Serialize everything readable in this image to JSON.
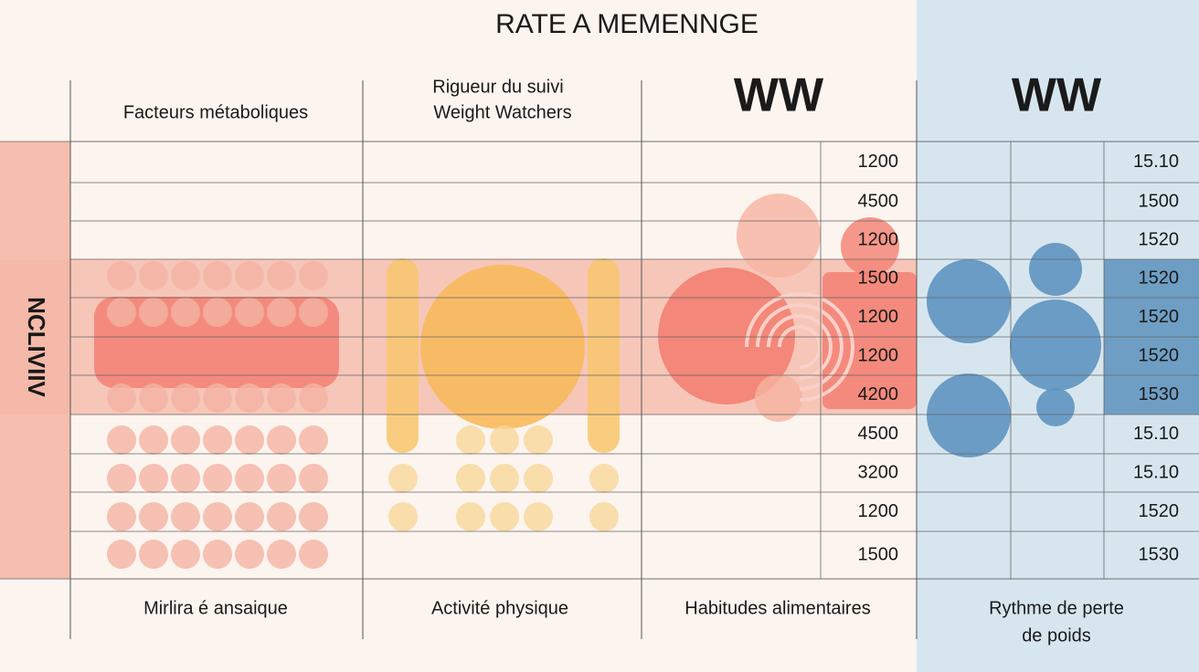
{
  "title": "RATE A MEMENNGE",
  "header": [
    "Facteurs métaboliques",
    [
      "Rigueur du suivi",
      "Weight Watchers"
    ],
    "WW",
    "WW"
  ],
  "side_label": "NCLIVIIV",
  "table": {
    "col3": [
      "1200",
      "4500",
      "1200",
      "1500",
      "1200",
      "1200",
      "4200",
      "4500",
      "3200",
      "1200",
      "1500"
    ],
    "col4": [
      "15.10",
      "1500",
      "1520",
      "1520",
      "1520",
      "1520",
      "1530",
      "15.10",
      "15.10",
      "1520",
      "1530"
    ]
  },
  "footer": [
    "Mirlira é ansaique",
    "Activité physique",
    "Habitudes alimentaires",
    [
      "Rythme de perte",
      "de poids"
    ]
  ]
}
